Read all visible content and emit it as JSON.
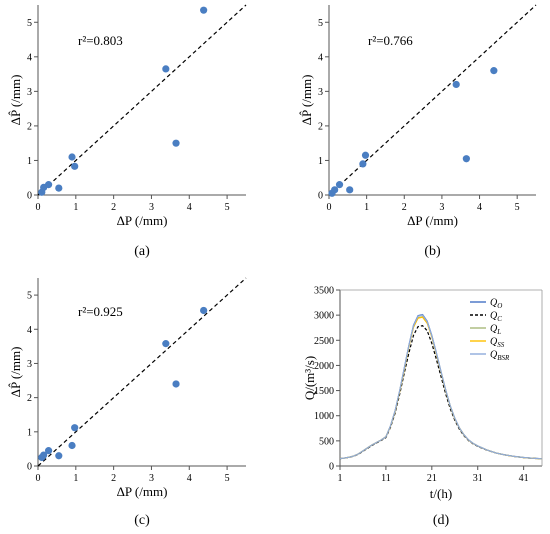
{
  "chart_data": [
    {
      "type": "scatter",
      "panel_label": "(a)",
      "annotation": "r²=0.803",
      "xlabel": "ΔP (/mm)",
      "ylabel": "ΔP̂ (/mm)",
      "xlim": [
        0,
        5.5
      ],
      "ylim": [
        0,
        5.5
      ],
      "xticks": [
        "0",
        "1",
        "2",
        "3",
        "4",
        "5"
      ],
      "yticks": [
        "0",
        "1",
        "2",
        "3",
        "4",
        "5"
      ],
      "reference_line": "1:1 dashed",
      "points": [
        {
          "x": 0.1,
          "y": 0.08
        },
        {
          "x": 0.15,
          "y": 0.22
        },
        {
          "x": 0.28,
          "y": 0.3
        },
        {
          "x": 0.55,
          "y": 0.2
        },
        {
          "x": 0.9,
          "y": 1.1
        },
        {
          "x": 0.97,
          "y": 0.83
        },
        {
          "x": 3.38,
          "y": 3.65
        },
        {
          "x": 3.65,
          "y": 1.5
        },
        {
          "x": 4.38,
          "y": 5.35
        }
      ]
    },
    {
      "type": "scatter",
      "panel_label": "(b)",
      "annotation": "r²=0.766",
      "xlabel": "ΔP (/mm)",
      "ylabel": "ΔP̂ (/mm)",
      "xlim": [
        0,
        5.5
      ],
      "ylim": [
        0,
        5.5
      ],
      "xticks": [
        "0",
        "1",
        "2",
        "3",
        "4",
        "5"
      ],
      "yticks": [
        "0",
        "1",
        "2",
        "3",
        "4",
        "5"
      ],
      "reference_line": "1:1 dashed",
      "points": [
        {
          "x": 0.08,
          "y": 0.05
        },
        {
          "x": 0.15,
          "y": 0.15
        },
        {
          "x": 0.28,
          "y": 0.3
        },
        {
          "x": 0.55,
          "y": 0.15
        },
        {
          "x": 0.9,
          "y": 0.9
        },
        {
          "x": 0.97,
          "y": 1.15
        },
        {
          "x": 3.38,
          "y": 3.2
        },
        {
          "x": 3.65,
          "y": 1.05
        },
        {
          "x": 4.38,
          "y": 3.6
        }
      ]
    },
    {
      "type": "scatter",
      "panel_label": "(c)",
      "annotation": "r²=0.925",
      "xlabel": "ΔP (/mm)",
      "ylabel": "ΔP̂ (/mm)",
      "xlim": [
        0,
        5.5
      ],
      "ylim": [
        0,
        5.5
      ],
      "xticks": [
        "0",
        "1",
        "2",
        "3",
        "4",
        "5"
      ],
      "yticks": [
        "0",
        "1",
        "2",
        "3",
        "4",
        "5"
      ],
      "reference_line": "1:1 dashed",
      "points": [
        {
          "x": 0.1,
          "y": 0.25
        },
        {
          "x": 0.15,
          "y": 0.32
        },
        {
          "x": 0.28,
          "y": 0.45
        },
        {
          "x": 0.55,
          "y": 0.3
        },
        {
          "x": 0.9,
          "y": 0.6
        },
        {
          "x": 0.97,
          "y": 1.12
        },
        {
          "x": 3.38,
          "y": 3.58
        },
        {
          "x": 3.65,
          "y": 2.4
        },
        {
          "x": 4.38,
          "y": 4.55
        }
      ]
    },
    {
      "type": "line",
      "panel_label": "(d)",
      "xlabel": "t/(h)",
      "ylabel": "Q/(m³/s)",
      "xlim": [
        1,
        45
      ],
      "ylim": [
        0,
        3500
      ],
      "xticks": [
        "1",
        "11",
        "21",
        "31",
        "41"
      ],
      "yticks": [
        "0",
        "500",
        "1000",
        "1500",
        "2000",
        "2500",
        "3000",
        "3500"
      ],
      "legend_position": "top-right",
      "x": [
        1,
        2,
        3,
        4,
        5,
        6,
        7,
        8,
        9,
        10,
        11,
        12,
        13,
        14,
        15,
        16,
        17,
        18,
        19,
        20,
        21,
        22,
        23,
        24,
        25,
        26,
        27,
        28,
        29,
        30,
        31,
        32,
        33,
        34,
        35,
        36,
        37,
        38,
        39,
        40,
        41,
        42,
        43,
        44,
        45
      ],
      "series": [
        {
          "name": "QO",
          "main": "Q",
          "sub": "O",
          "color": "#4472c4",
          "dash": "",
          "values": [
            150,
            160,
            175,
            200,
            240,
            300,
            360,
            420,
            470,
            520,
            580,
            800,
            1100,
            1500,
            1950,
            2400,
            2800,
            2990,
            3010,
            2880,
            2600,
            2250,
            1880,
            1520,
            1200,
            950,
            760,
            620,
            520,
            450,
            400,
            360,
            320,
            290,
            260,
            240,
            220,
            205,
            190,
            180,
            170,
            162,
            155,
            150,
            145
          ]
        },
        {
          "name": "QC",
          "main": "Q",
          "sub": "C",
          "color": "#000000",
          "dash": "3,2",
          "values": [
            148,
            158,
            172,
            195,
            235,
            292,
            350,
            410,
            460,
            510,
            565,
            770,
            1050,
            1430,
            1850,
            2250,
            2600,
            2770,
            2790,
            2690,
            2440,
            2120,
            1780,
            1440,
            1140,
            910,
            730,
            600,
            505,
            440,
            392,
            352,
            315,
            285,
            257,
            237,
            218,
            203,
            188,
            178,
            168,
            160,
            153,
            148,
            143
          ]
        },
        {
          "name": "QL",
          "main": "Q",
          "sub": "L",
          "color": "#a9b97a",
          "dash": "",
          "values": [
            150,
            160,
            175,
            200,
            240,
            300,
            360,
            420,
            470,
            520,
            580,
            795,
            1090,
            1490,
            1930,
            2380,
            2770,
            2950,
            2970,
            2850,
            2580,
            2230,
            1870,
            1510,
            1195,
            945,
            757,
            618,
            518,
            449,
            399,
            359,
            319,
            289,
            259,
            239,
            219,
            204,
            189,
            179,
            169,
            161,
            154,
            149,
            144
          ]
        },
        {
          "name": "QSS",
          "main": "Q",
          "sub": "SS",
          "color": "#ffc000",
          "dash": "",
          "values": [
            150,
            160,
            175,
            200,
            240,
            300,
            360,
            420,
            470,
            520,
            580,
            792,
            1085,
            1480,
            1920,
            2370,
            2760,
            2940,
            2960,
            2840,
            2570,
            2225,
            1865,
            1505,
            1192,
            943,
            755,
            617,
            517,
            448,
            398,
            358,
            318,
            288,
            258,
            238,
            218,
            203,
            188,
            178,
            168,
            160,
            153,
            148,
            143
          ]
        },
        {
          "name": "QBSR",
          "main": "Q",
          "sub": "BSR",
          "color": "#8eaadb",
          "dash": "",
          "values": [
            150,
            160,
            175,
            200,
            240,
            300,
            360,
            420,
            470,
            520,
            580,
            798,
            1095,
            1495,
            1945,
            2395,
            2790,
            2980,
            3000,
            2870,
            2590,
            2245,
            1875,
            1515,
            1198,
            948,
            758,
            619,
            519,
            449,
            399,
            359,
            319,
            289,
            259,
            239,
            219,
            204,
            189,
            179,
            169,
            161,
            154,
            149,
            144
          ]
        }
      ]
    }
  ]
}
